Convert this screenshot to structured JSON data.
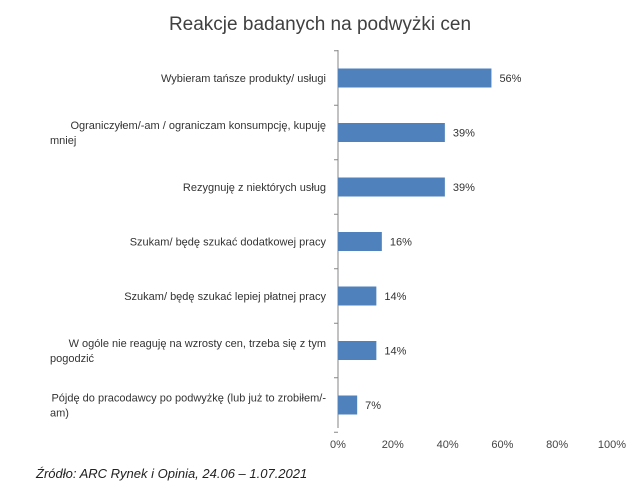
{
  "chart_data": {
    "type": "bar",
    "orientation": "horizontal",
    "title": "Reakcje badanych na podwyżki cen",
    "categories": [
      [
        "Wybieram tańsze produkty/ usługi"
      ],
      [
        "Ograniczyłem/-am / ograniczam konsumpcję, kupuję",
        "mniej"
      ],
      [
        "Rezygnuję z niektórych usług"
      ],
      [
        "Szukam/ będę szukać dodatkowej pracy"
      ],
      [
        "Szukam/ będę szukać lepiej płatnej pracy"
      ],
      [
        "W ogóle nie reaguję na wzrosty cen, trzeba się z tym",
        "pogodzić"
      ],
      [
        "Pójdę do pracodawcy po podwyżkę (lub już to zrobiłem/-",
        "am)"
      ]
    ],
    "values": [
      56,
      39,
      39,
      16,
      14,
      14,
      7
    ],
    "value_labels": [
      "56%",
      "39%",
      "39%",
      "16%",
      "14%",
      "14%",
      "7%"
    ],
    "xlim": [
      0,
      100
    ],
    "ticks": [
      "0%",
      "20%",
      "40%",
      "60%",
      "80%",
      "100%"
    ],
    "tick_values": [
      0,
      20,
      40,
      60,
      80,
      100
    ],
    "grid": false,
    "bar_color": "#4f81bd"
  },
  "source": "Źródło: ARC Rynek i Opinia, 24.06 – 1.07.2021"
}
